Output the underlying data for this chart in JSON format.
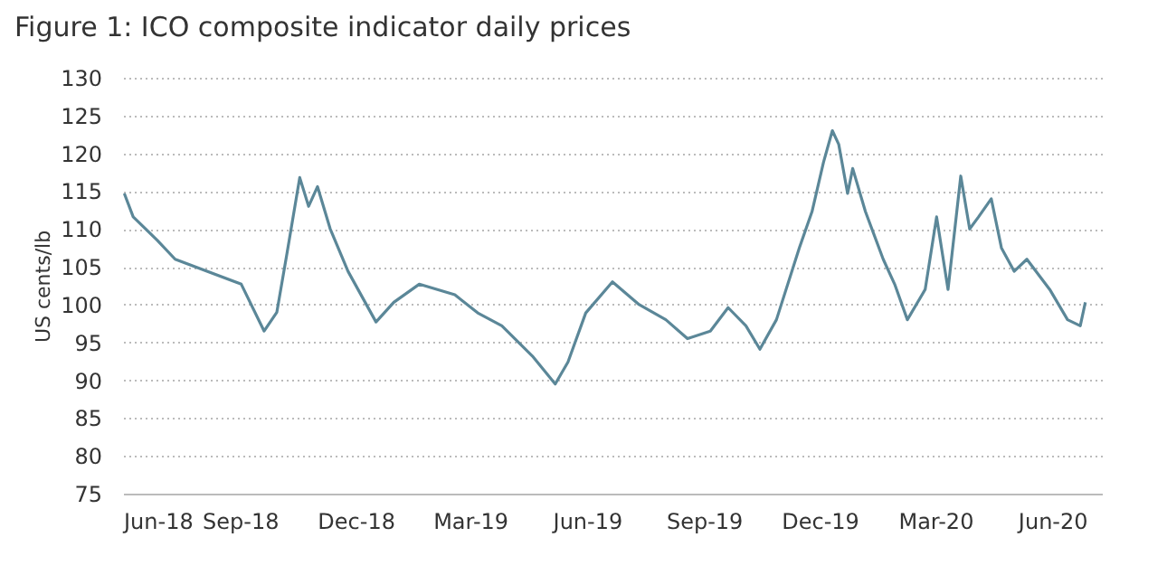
{
  "chart_data": {
    "type": "line",
    "title": "Figure 1: ICO composite indicator daily prices",
    "ylabel": "US cents/lb",
    "x": [
      "2018-06-02",
      "2018-06-09",
      "2018-06-28",
      "2018-07-12",
      "2018-09-02",
      "2018-09-20",
      "2018-09-30",
      "2018-10-08",
      "2018-10-18",
      "2018-10-25",
      "2018-11-01",
      "2018-11-11",
      "2018-11-25",
      "2018-12-17",
      "2018-12-31",
      "2019-01-20",
      "2019-02-17",
      "2019-03-07",
      "2019-03-26",
      "2019-04-19",
      "2019-05-07",
      "2019-05-17",
      "2019-05-31",
      "2019-06-21",
      "2019-07-12",
      "2019-08-02",
      "2019-08-19",
      "2019-09-06",
      "2019-09-20",
      "2019-10-04",
      "2019-10-15",
      "2019-10-28",
      "2019-11-15",
      "2019-11-25",
      "2019-12-04",
      "2019-12-11",
      "2019-12-16",
      "2019-12-23",
      "2019-12-27",
      "2020-01-06",
      "2020-01-20",
      "2020-01-29",
      "2020-02-08",
      "2020-02-22",
      "2020-03-02",
      "2020-03-11",
      "2020-03-21",
      "2020-03-28",
      "2020-04-04",
      "2020-04-14",
      "2020-04-22",
      "2020-05-02",
      "2020-05-12",
      "2020-05-30",
      "2020-06-13",
      "2020-06-23",
      "2020-06-27"
    ],
    "series": [
      {
        "color": "#5b8798",
        "values": [
          114.7,
          111.6,
          108.5,
          106,
          102.7,
          96.5,
          99,
          106.8,
          116.8,
          113,
          115.6,
          110,
          104.4,
          97.7,
          100.3,
          102.7,
          101.3,
          98.9,
          97.2,
          93.2,
          89.5,
          92.4,
          98.9,
          103,
          100,
          98,
          95.5,
          96.5,
          99.6,
          97.2,
          94.1,
          98,
          107.5,
          112.3,
          118.8,
          123,
          121.2,
          114.7,
          118,
          112.3,
          106,
          102.7,
          98,
          102,
          111.6,
          102,
          117,
          110,
          111.6,
          114,
          107.5,
          104.4,
          106,
          102,
          98,
          97.2,
          100.3
        ]
      }
    ],
    "xlim": [
      "2018-06-01",
      "2020-07-10"
    ],
    "xticks": [
      {
        "value": "2018-06-01",
        "label": "Jun-18"
      },
      {
        "value": "2018-09-01",
        "label": "Sep-18"
      },
      {
        "value": "2018-12-01",
        "label": "Dec-18"
      },
      {
        "value": "2019-03-01",
        "label": "Mar-19"
      },
      {
        "value": "2019-06-01",
        "label": "Jun-19"
      },
      {
        "value": "2019-09-01",
        "label": "Sep-19"
      },
      {
        "value": "2019-12-01",
        "label": "Dec-19"
      },
      {
        "value": "2020-03-01",
        "label": "Mar-20"
      },
      {
        "value": "2020-06-01",
        "label": "Jun-20"
      }
    ],
    "ylim": [
      75,
      130
    ],
    "yticks": [
      75,
      80,
      85,
      90,
      95,
      100,
      105,
      110,
      115,
      120,
      125,
      130
    ],
    "grid": "y",
    "line_style": "solid",
    "marker": "none"
  }
}
